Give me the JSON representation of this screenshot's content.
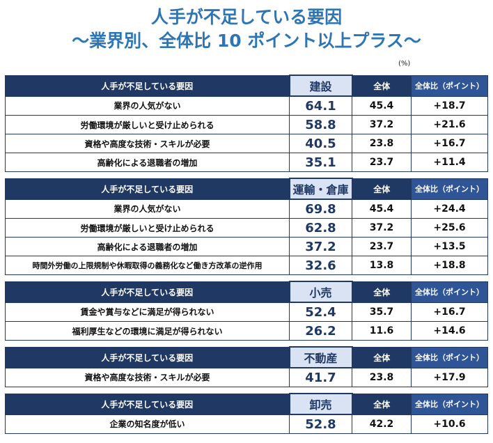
{
  "title": "人手が不足している要因",
  "subtitle": "～業界別、全体比 10 ポイント以上プラス～",
  "unit": "(%)",
  "header": {
    "factor": "人手が不足している要因",
    "overall": "全体",
    "diff": "全体比（ポイント）"
  },
  "colors": {
    "title": "#2e75b6",
    "header_dark": "#203864",
    "header_diff": "#2f5597",
    "industry_bg": "#dae3f3"
  },
  "sections": [
    {
      "industry": "建設",
      "rows": [
        {
          "factor": "業界の人気がない",
          "value": "64.1",
          "overall": "45.4",
          "diff": "+18.7"
        },
        {
          "factor": "労働環境が厳しいと受け止められる",
          "value": "58.8",
          "overall": "37.2",
          "diff": "+21.6"
        },
        {
          "factor": "資格や高度な技術・スキルが必要",
          "value": "40.5",
          "overall": "23.8",
          "diff": "+16.7"
        },
        {
          "factor": "高齢化による退職者の増加",
          "value": "35.1",
          "overall": "23.7",
          "diff": "+11.4"
        }
      ]
    },
    {
      "industry": "運輸・倉庫",
      "rows": [
        {
          "factor": "業界の人気がない",
          "value": "69.8",
          "overall": "45.4",
          "diff": "+24.4"
        },
        {
          "factor": "労働環境が厳しいと受け止められる",
          "value": "62.8",
          "overall": "37.2",
          "diff": "+25.6"
        },
        {
          "factor": "高齢化による退職者の増加",
          "value": "37.2",
          "overall": "23.7",
          "diff": "+13.5"
        },
        {
          "factor": "時間外労働の上限規制や休暇取得の義務化など働き方改革の逆作用",
          "value": "32.6",
          "overall": "13.8",
          "diff": "+18.8"
        }
      ]
    },
    {
      "industry": "小売",
      "rows": [
        {
          "factor": "賃金や賞与などに満足が得られない",
          "value": "52.4",
          "overall": "35.7",
          "diff": "+16.7"
        },
        {
          "factor": "福利厚生などの環境に満足が得られない",
          "value": "26.2",
          "overall": "11.6",
          "diff": "+14.6"
        }
      ]
    },
    {
      "industry": "不動産",
      "rows": [
        {
          "factor": "資格や高度な技術・スキルが必要",
          "value": "41.7",
          "overall": "23.8",
          "diff": "+17.9"
        }
      ]
    },
    {
      "industry": "卸売",
      "rows": [
        {
          "factor": "企業の知名度が低い",
          "value": "52.8",
          "overall": "42.2",
          "diff": "+10.6"
        }
      ]
    }
  ]
}
